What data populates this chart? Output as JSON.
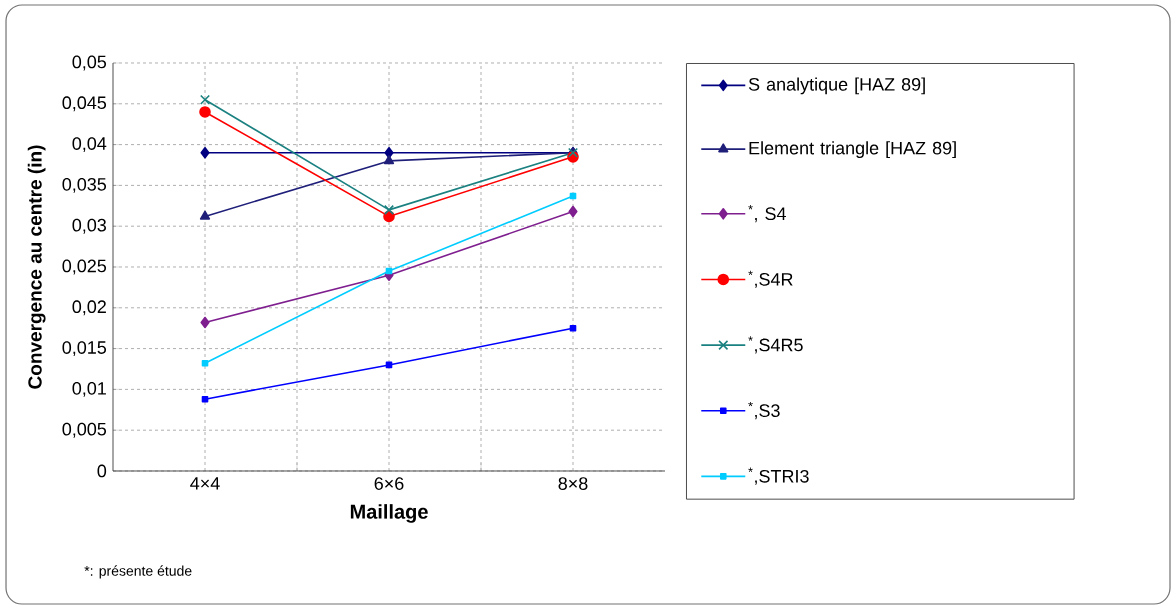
{
  "chart_data": {
    "type": "line",
    "xlabel": "Maillage",
    "ylabel": "Convergence au centre (in)",
    "categories": [
      "4×4",
      "6×6",
      "8×8"
    ],
    "ylim": [
      0,
      0.05
    ],
    "yticks": [
      {
        "value": 0,
        "label": "0"
      },
      {
        "value": 0.005,
        "label": "0,005"
      },
      {
        "value": 0.01,
        "label": "0,01"
      },
      {
        "value": 0.015,
        "label": "0,015"
      },
      {
        "value": 0.02,
        "label": "0,02"
      },
      {
        "value": 0.025,
        "label": "0,025"
      },
      {
        "value": 0.03,
        "label": "0,03"
      },
      {
        "value": 0.035,
        "label": "0,035"
      },
      {
        "value": 0.04,
        "label": "0,04"
      },
      {
        "value": 0.045,
        "label": "0,045"
      },
      {
        "value": 0.05,
        "label": "0,05"
      }
    ],
    "grid": true,
    "legend": "right",
    "line_style": "solid",
    "series": [
      {
        "name": "S analytique [HAZ 89]",
        "color": "#000080",
        "marker": "diamond",
        "values": [
          0.039,
          0.039,
          0.039
        ]
      },
      {
        "name": "Element triangle [HAZ 89]",
        "color": "#1f1f7a",
        "marker": "triangle",
        "values": [
          0.0312,
          0.038,
          0.039
        ]
      },
      {
        "name": "$^{*}$, S4",
        "color": "#7f1f8f",
        "marker": "diamond",
        "values": [
          0.0182,
          0.024,
          0.0318
        ]
      },
      {
        "name": "$^{*}$,S4R",
        "color": "#ff0000",
        "marker": "circle",
        "values": [
          0.044,
          0.0312,
          0.0385
        ]
      },
      {
        "name": "$^{*}$,S4R5",
        "color": "#1a8080",
        "marker": "cross",
        "values": [
          0.0455,
          0.032,
          0.039
        ]
      },
      {
        "name": "$^{*}$,S3",
        "color": "#0000ff",
        "marker": "square",
        "values": [
          0.0088,
          0.013,
          0.0175
        ]
      },
      {
        "name": "$^{*}$,STRI3",
        "color": "#00ccff",
        "marker": "square",
        "values": [
          0.0132,
          0.0245,
          0.0337
        ]
      }
    ],
    "annotations": [
      "*: présente étude"
    ]
  }
}
